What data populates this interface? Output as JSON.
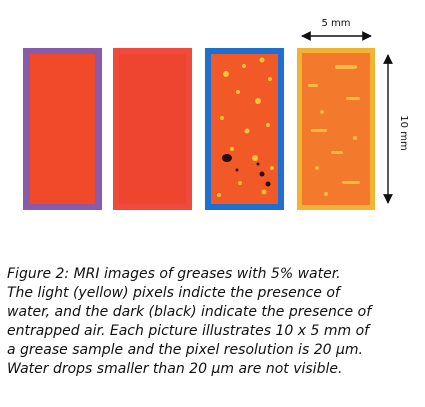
{
  "figure": {
    "panels": [
      {
        "frame_color": "#8A5BA8",
        "fill_color": "#F04A2A",
        "speckle": "none"
      },
      {
        "frame_color": "#F04A3C",
        "fill_color": "#EE4530",
        "speckle": "none"
      },
      {
        "frame_color": "#1F6FD0",
        "fill_color": "#F15A26",
        "speckle": "yellow-and-dark"
      },
      {
        "frame_color": "#F2B233",
        "fill_color": "#F3792C",
        "speckle": "yellow"
      }
    ],
    "width_label": "5 mm",
    "height_label": "10 mm"
  },
  "caption": {
    "lines": [
      "Figure 2: MRI images of greases with 5% water.",
      "The light (yellow) pixels indicte the presence of",
      "water, and the dark (black) indicate the presence of",
      "entrapped air. Each picture illustrates 10 x 5 mm of",
      "a grease sample and the pixel resolution is 20 μm.",
      "Water drops smaller than 20 μm are not visible."
    ]
  }
}
